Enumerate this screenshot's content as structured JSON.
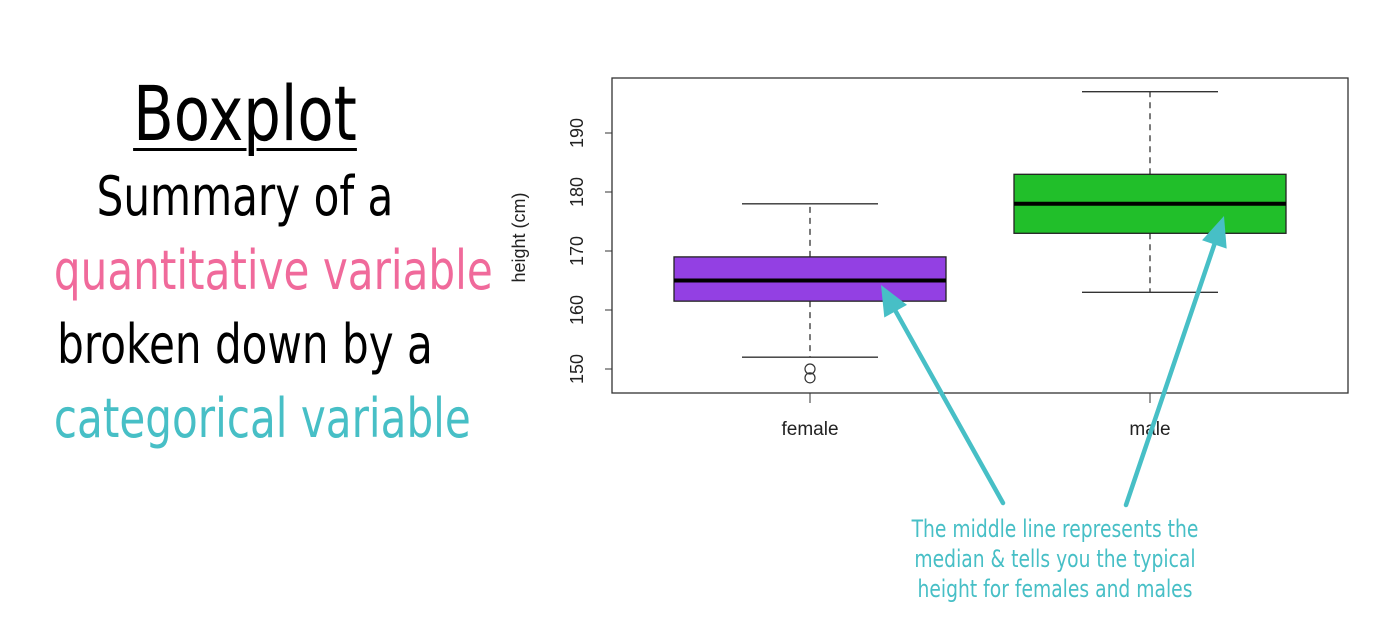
{
  "slide": {
    "title": "Boxplot",
    "line1": "Summary of a",
    "line2": "quantitative variable",
    "line3": "broken down by a",
    "line4": "categorical variable",
    "colors": {
      "text": "#000000",
      "quantitative": "#f06a9b",
      "categorical": "#47bfc6"
    }
  },
  "annotation": {
    "lines": [
      "The middle line represents the",
      "median & tells you the typical",
      "height for females and males"
    ],
    "color": "#47bfc6"
  },
  "chart_data": {
    "type": "boxplot",
    "ylabel": "height (cm)",
    "xlabel": "",
    "ylim": [
      147,
      200
    ],
    "yticks": [
      150,
      160,
      170,
      180,
      190
    ],
    "categories": [
      "female",
      "male"
    ],
    "boxes": [
      {
        "category": "female",
        "whisker_low": 152,
        "q1": 161.5,
        "median": 165,
        "q3": 169,
        "whisker_high": 178,
        "outliers": [
          148.5,
          150
        ],
        "color": "#9340e3"
      },
      {
        "category": "male",
        "whisker_low": 163,
        "q1": 173,
        "median": 178,
        "q3": 183,
        "whisker_high": 197,
        "outliers": [],
        "color": "#21bf2a"
      }
    ],
    "grid": false,
    "legend": "none"
  }
}
